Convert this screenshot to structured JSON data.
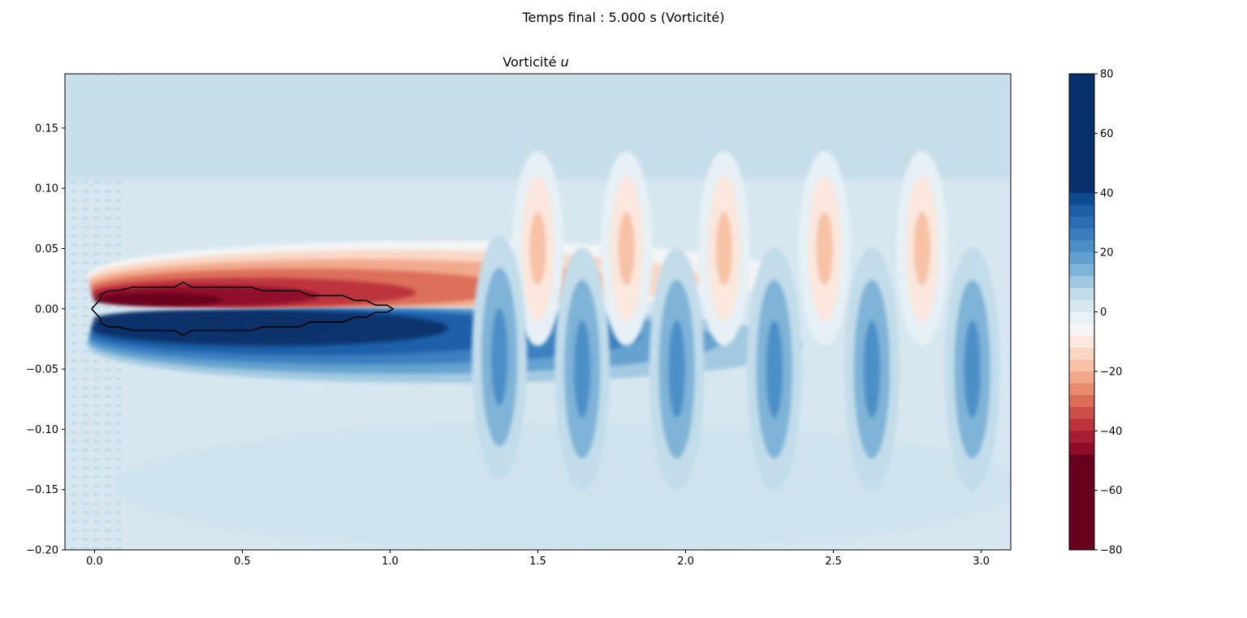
{
  "figure": {
    "suptitle": "Temps final : 5.000 s (Vorticité)"
  },
  "chart_data": {
    "type": "heatmap",
    "subtype": "filled-contour",
    "title": "Vorticité",
    "title_italic_part": "u",
    "xlabel": "",
    "ylabel": "",
    "xlim": [
      -0.1,
      3.1
    ],
    "ylim": [
      -0.2,
      0.195
    ],
    "x_ticks": [
      0.0,
      0.5,
      1.0,
      1.5,
      2.0,
      2.5,
      3.0
    ],
    "x_tick_labels": [
      "0.0",
      "0.5",
      "1.0",
      "1.5",
      "2.0",
      "2.5",
      "3.0"
    ],
    "y_ticks": [
      0.15,
      0.1,
      0.05,
      0.0,
      -0.05,
      -0.1,
      -0.15,
      -0.2
    ],
    "y_tick_labels": [
      "0.15",
      "0.10",
      "0.05",
      "0.00",
      "−0.05",
      "−0.10",
      "−0.15",
      "−0.20"
    ],
    "colormap": "RdBu",
    "colorbar": {
      "range": [
        -80,
        80
      ],
      "ticks": [
        80,
        60,
        40,
        20,
        0,
        -20,
        -40,
        -60,
        -80
      ],
      "tick_labels": [
        "80",
        "60",
        "40",
        "20",
        "0",
        "−20",
        "−40",
        "−60",
        "−80"
      ],
      "levels": [
        {
          "from": 40,
          "to": 80,
          "color": "#08306b"
        },
        {
          "from": 36,
          "to": 40,
          "color": "#0d4a8f"
        },
        {
          "from": 32,
          "to": 36,
          "color": "#1c5fa8"
        },
        {
          "from": 28,
          "to": 32,
          "color": "#2a6db3"
        },
        {
          "from": 24,
          "to": 28,
          "color": "#3a7ebf"
        },
        {
          "from": 20,
          "to": 24,
          "color": "#4c8fc7"
        },
        {
          "from": 16,
          "to": 20,
          "color": "#62a0cf"
        },
        {
          "from": 12,
          "to": 16,
          "color": "#7fb3d7"
        },
        {
          "from": 8,
          "to": 12,
          "color": "#a0c8e0"
        },
        {
          "from": 4,
          "to": 8,
          "color": "#c2dcea"
        },
        {
          "from": 0,
          "to": 4,
          "color": "#d6e7f0"
        },
        {
          "from": -4,
          "to": 0,
          "color": "#e6f0f5"
        },
        {
          "from": -8,
          "to": -4,
          "color": "#f5f5f5"
        },
        {
          "from": -12,
          "to": -8,
          "color": "#fbe7dd"
        },
        {
          "from": -16,
          "to": -12,
          "color": "#fad6c4"
        },
        {
          "from": -20,
          "to": -16,
          "color": "#f7c2a6"
        },
        {
          "from": -24,
          "to": -20,
          "color": "#f2a889"
        },
        {
          "from": -28,
          "to": -24,
          "color": "#e88c6e"
        },
        {
          "from": -32,
          "to": -28,
          "color": "#db6d58"
        },
        {
          "from": -36,
          "to": -32,
          "color": "#cb4f48"
        },
        {
          "from": -40,
          "to": -36,
          "color": "#bb323c"
        },
        {
          "from": -44,
          "to": -40,
          "color": "#a71d33"
        },
        {
          "from": -48,
          "to": -44,
          "color": "#8f0c29"
        },
        {
          "from": -80,
          "to": -48,
          "color": "#67001f"
        }
      ]
    },
    "field_description_colors": {
      "background": "#d6e7f0",
      "light_background": "#e6f0f5",
      "obstacle_outline": "#000000"
    },
    "features": [
      {
        "kind": "shear-layer",
        "sign": "negative",
        "x_range": [
          0.0,
          1.1
        ],
        "y_range": [
          0.0,
          0.05
        ],
        "peak": -80
      },
      {
        "kind": "shear-layer",
        "sign": "positive",
        "x_range": [
          0.0,
          1.2
        ],
        "y_range": [
          -0.05,
          0.0
        ],
        "peak": 60
      },
      {
        "kind": "vortex",
        "sign": "negative",
        "x": 1.5,
        "y": 0.05
      },
      {
        "kind": "vortex",
        "sign": "positive",
        "x": 1.37,
        "y": -0.04
      },
      {
        "kind": "vortex",
        "sign": "positive",
        "x": 1.65,
        "y": -0.05
      },
      {
        "kind": "vortex",
        "sign": "negative",
        "x": 1.8,
        "y": 0.05
      },
      {
        "kind": "vortex",
        "sign": "positive",
        "x": 1.97,
        "y": -0.05
      },
      {
        "kind": "vortex",
        "sign": "negative",
        "x": 2.13,
        "y": 0.05
      },
      {
        "kind": "vortex",
        "sign": "positive",
        "x": 2.3,
        "y": -0.05
      },
      {
        "kind": "vortex",
        "sign": "negative",
        "x": 2.47,
        "y": 0.05
      },
      {
        "kind": "vortex",
        "sign": "positive",
        "x": 2.63,
        "y": -0.05
      },
      {
        "kind": "vortex",
        "sign": "negative",
        "x": 2.8,
        "y": 0.05
      },
      {
        "kind": "vortex",
        "sign": "positive",
        "x": 2.97,
        "y": -0.05
      }
    ],
    "obstacle_outline": [
      [
        -0.01,
        0.0
      ],
      [
        0.02,
        0.008
      ],
      [
        0.02,
        0.012
      ],
      [
        0.05,
        0.015
      ],
      [
        0.08,
        0.015
      ],
      [
        0.13,
        0.018
      ],
      [
        0.27,
        0.018
      ],
      [
        0.3,
        0.022
      ],
      [
        0.33,
        0.018
      ],
      [
        0.53,
        0.018
      ],
      [
        0.57,
        0.015
      ],
      [
        0.69,
        0.015
      ],
      [
        0.73,
        0.011
      ],
      [
        0.84,
        0.011
      ],
      [
        0.88,
        0.007
      ],
      [
        0.92,
        0.007
      ],
      [
        0.95,
        0.003
      ],
      [
        0.99,
        0.003
      ],
      [
        1.01,
        0.0
      ],
      [
        0.99,
        -0.003
      ],
      [
        0.95,
        -0.003
      ],
      [
        0.92,
        -0.007
      ],
      [
        0.88,
        -0.007
      ],
      [
        0.84,
        -0.011
      ],
      [
        0.73,
        -0.011
      ],
      [
        0.69,
        -0.015
      ],
      [
        0.57,
        -0.015
      ],
      [
        0.53,
        -0.018
      ],
      [
        0.33,
        -0.018
      ],
      [
        0.3,
        -0.022
      ],
      [
        0.27,
        -0.018
      ],
      [
        0.13,
        -0.018
      ],
      [
        0.08,
        -0.015
      ],
      [
        0.05,
        -0.015
      ],
      [
        0.02,
        -0.012
      ],
      [
        0.02,
        -0.008
      ],
      [
        -0.01,
        0.0
      ]
    ]
  }
}
